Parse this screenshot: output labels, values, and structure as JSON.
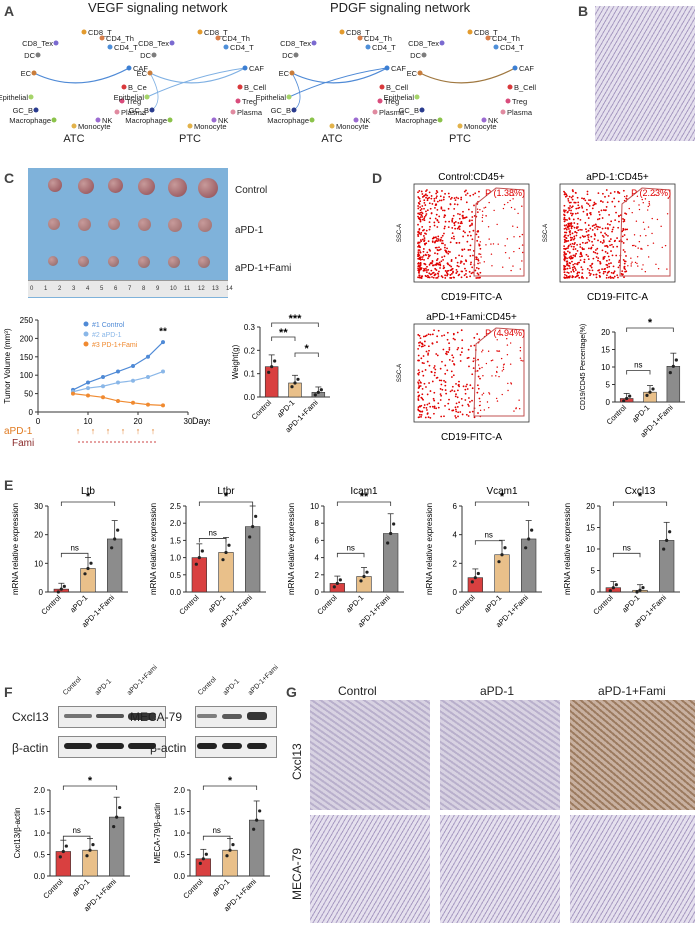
{
  "panel_labels": {
    "A": "A",
    "B": "B",
    "C": "C",
    "D": "D",
    "E": "E",
    "F": "F",
    "G": "G"
  },
  "panelA": {
    "vegf_title": "VEGF signaling network",
    "pdgf_title": "PDGF signaling network",
    "nodes": [
      "CD8_T",
      "CD4_Th",
      "CD8_Tex",
      "CD4_T",
      "DC",
      "CAF",
      "EC",
      "B_Cell",
      "Epithelial",
      "Treg",
      "GC_B",
      "Plasma",
      "Macrophage",
      "NK",
      "Monocyte"
    ],
    "node_b_ce": "B_Ce",
    "subplots": [
      "ATC",
      "PTC",
      "ATC",
      "PTC"
    ]
  },
  "panelC": {
    "photo_labels": [
      "Control",
      "aPD-1",
      "aPD-1+Fami"
    ],
    "ruler_numbers": [
      "0",
      "1",
      "2",
      "3",
      "4",
      "5",
      "6",
      "7",
      "8",
      "9",
      "10",
      "11",
      "12",
      "13",
      "14"
    ],
    "line_legend": [
      "#1 Control",
      "#2 aPD-1",
      "#3 PD-1+Fami"
    ],
    "ylabel": "Tumor Volume (mm³)",
    "xlabel": "Days",
    "sig": "**",
    "treatments": [
      "aPD-1",
      "Fami"
    ],
    "weight_ylabel": "Weight(g)"
  },
  "chart_data": [
    {
      "type": "line",
      "title": "",
      "xlabel": "Days",
      "ylabel": "Tumor Volume (mm³)",
      "ylim": [
        0,
        250
      ],
      "x": [
        7,
        10,
        13,
        16,
        19,
        22,
        25
      ],
      "series": [
        {
          "name": "#1 Control",
          "values": [
            60,
            80,
            95,
            110,
            125,
            150,
            190
          ]
        },
        {
          "name": "#2 aPD-1",
          "values": [
            55,
            65,
            70,
            80,
            85,
            95,
            110
          ]
        },
        {
          "name": "#3 PD-1+Fami",
          "values": [
            50,
            45,
            40,
            30,
            25,
            20,
            18
          ]
        }
      ],
      "xticks": [
        "0",
        "10",
        "20",
        "30"
      ],
      "yticks": [
        "0",
        "50",
        "100",
        "150",
        "200",
        "250"
      ]
    },
    {
      "type": "bar",
      "title": "",
      "ylabel": "Weight(g)",
      "categories": [
        "Control",
        "aPD-1",
        "aPD-1+Fami"
      ],
      "values": [
        0.13,
        0.06,
        0.02
      ],
      "ylim": [
        0,
        0.3
      ],
      "yticks": [
        "0.0",
        "0.1",
        "0.2",
        "0.3"
      ],
      "significance": [
        "***",
        "**",
        "*"
      ]
    },
    {
      "type": "bar",
      "title": "",
      "ylabel": "CD19/CD45 Percentage(%)",
      "categories": [
        "Control",
        "aPD-1",
        "aPD-1+Fami"
      ],
      "values": [
        1.0,
        2.8,
        10.2
      ],
      "ylim": [
        0,
        20
      ],
      "yticks": [
        "0",
        "5",
        "10",
        "15",
        "20"
      ],
      "significance": [
        "ns",
        "*"
      ]
    },
    {
      "type": "bar",
      "title": "Ltb",
      "ylabel": "mRNA relative expression",
      "categories": [
        "Control",
        "aPD-1",
        "aPD-1+Fami"
      ],
      "values": [
        1.0,
        8.2,
        18.5
      ],
      "ylim": [
        0,
        30
      ],
      "yticks": [
        "0",
        "10",
        "20",
        "30"
      ],
      "significance": [
        "ns",
        "*"
      ]
    },
    {
      "type": "bar",
      "title": "Ltbr",
      "ylabel": "mRNA relative expression",
      "categories": [
        "Control",
        "aPD-1",
        "aPD-1+Fami"
      ],
      "values": [
        1.0,
        1.15,
        1.9
      ],
      "ylim": [
        0,
        2.5
      ],
      "yticks": [
        "0.0",
        "0.5",
        "1.0",
        "1.5",
        "2.0",
        "2.5"
      ],
      "significance": [
        "ns",
        "*"
      ]
    },
    {
      "type": "bar",
      "title": "Icam1",
      "ylabel": "mRNA relative expression",
      "categories": [
        "Control",
        "aPD-1",
        "aPD-1+Fami"
      ],
      "values": [
        1.0,
        1.8,
        6.8
      ],
      "ylim": [
        0,
        10
      ],
      "yticks": [
        "0",
        "2",
        "4",
        "6",
        "8",
        "10"
      ],
      "significance": [
        "ns",
        "**"
      ]
    },
    {
      "type": "bar",
      "title": "Vcam1",
      "ylabel": "mRNA relative expression",
      "categories": [
        "Control",
        "aPD-1",
        "aPD-1+Fami"
      ],
      "values": [
        1.0,
        2.6,
        3.7
      ],
      "ylim": [
        0,
        6
      ],
      "yticks": [
        "0",
        "2",
        "4",
        "6"
      ],
      "significance": [
        "ns",
        "*"
      ]
    },
    {
      "type": "bar",
      "title": "Cxcl13",
      "ylabel": "mRNA relative expression",
      "categories": [
        "Control",
        "aPD-1",
        "aPD-1+Fami"
      ],
      "values": [
        1.0,
        0.4,
        12.0
      ],
      "ylim": [
        0,
        20
      ],
      "yticks": [
        "0",
        "5",
        "10",
        "15",
        "20"
      ],
      "significance": [
        "ns",
        "*"
      ]
    },
    {
      "type": "bar",
      "title": "",
      "ylabel": "Cxcl13/β-actin",
      "categories": [
        "Control",
        "aPD-1",
        "aPD-1+Fami"
      ],
      "values": [
        0.57,
        0.6,
        1.37
      ],
      "ylim": [
        0,
        2.0
      ],
      "yticks": [
        "0.0",
        "0.5",
        "1.0",
        "1.5",
        "2.0"
      ],
      "significance": [
        "ns",
        "*"
      ]
    },
    {
      "type": "bar",
      "title": "",
      "ylabel": "MECA-79/β-actin",
      "categories": [
        "Control",
        "aPD-1",
        "aPD-1+Fami"
      ],
      "values": [
        0.4,
        0.6,
        1.3
      ],
      "ylim": [
        0,
        2.0
      ],
      "yticks": [
        "0.0",
        "0.5",
        "1.0",
        "1.5",
        "2.0"
      ],
      "significance": [
        "ns",
        "*"
      ]
    }
  ],
  "panelD": {
    "plots": [
      {
        "title": "Control:CD45+",
        "gate": "P (1.38%)"
      },
      {
        "title": "aPD-1:CD45+",
        "gate": "P (2.23%)"
      },
      {
        "title": "aPD-1+Fami:CD45+",
        "gate": "P (4.94%)"
      }
    ],
    "xlabel": "CD19-FITC-A",
    "ylabel": "SSC-A"
  },
  "panelF": {
    "lanes": [
      "Control",
      "aPD-1",
      "aPD-1+Fami"
    ],
    "blot1": "Cxcl13",
    "blot2": "MECA-79",
    "loading": "β-actin"
  },
  "panelG": {
    "cols": [
      "Control",
      "aPD-1",
      "aPD-1+Fami"
    ],
    "rows": [
      "Cxcl13",
      "MECA-79"
    ]
  },
  "colors": {
    "control": "#d94040",
    "apd1": "#e9c08a",
    "fami": "#8c8c8c",
    "flow": "#e00000",
    "gate": "#c05050"
  }
}
